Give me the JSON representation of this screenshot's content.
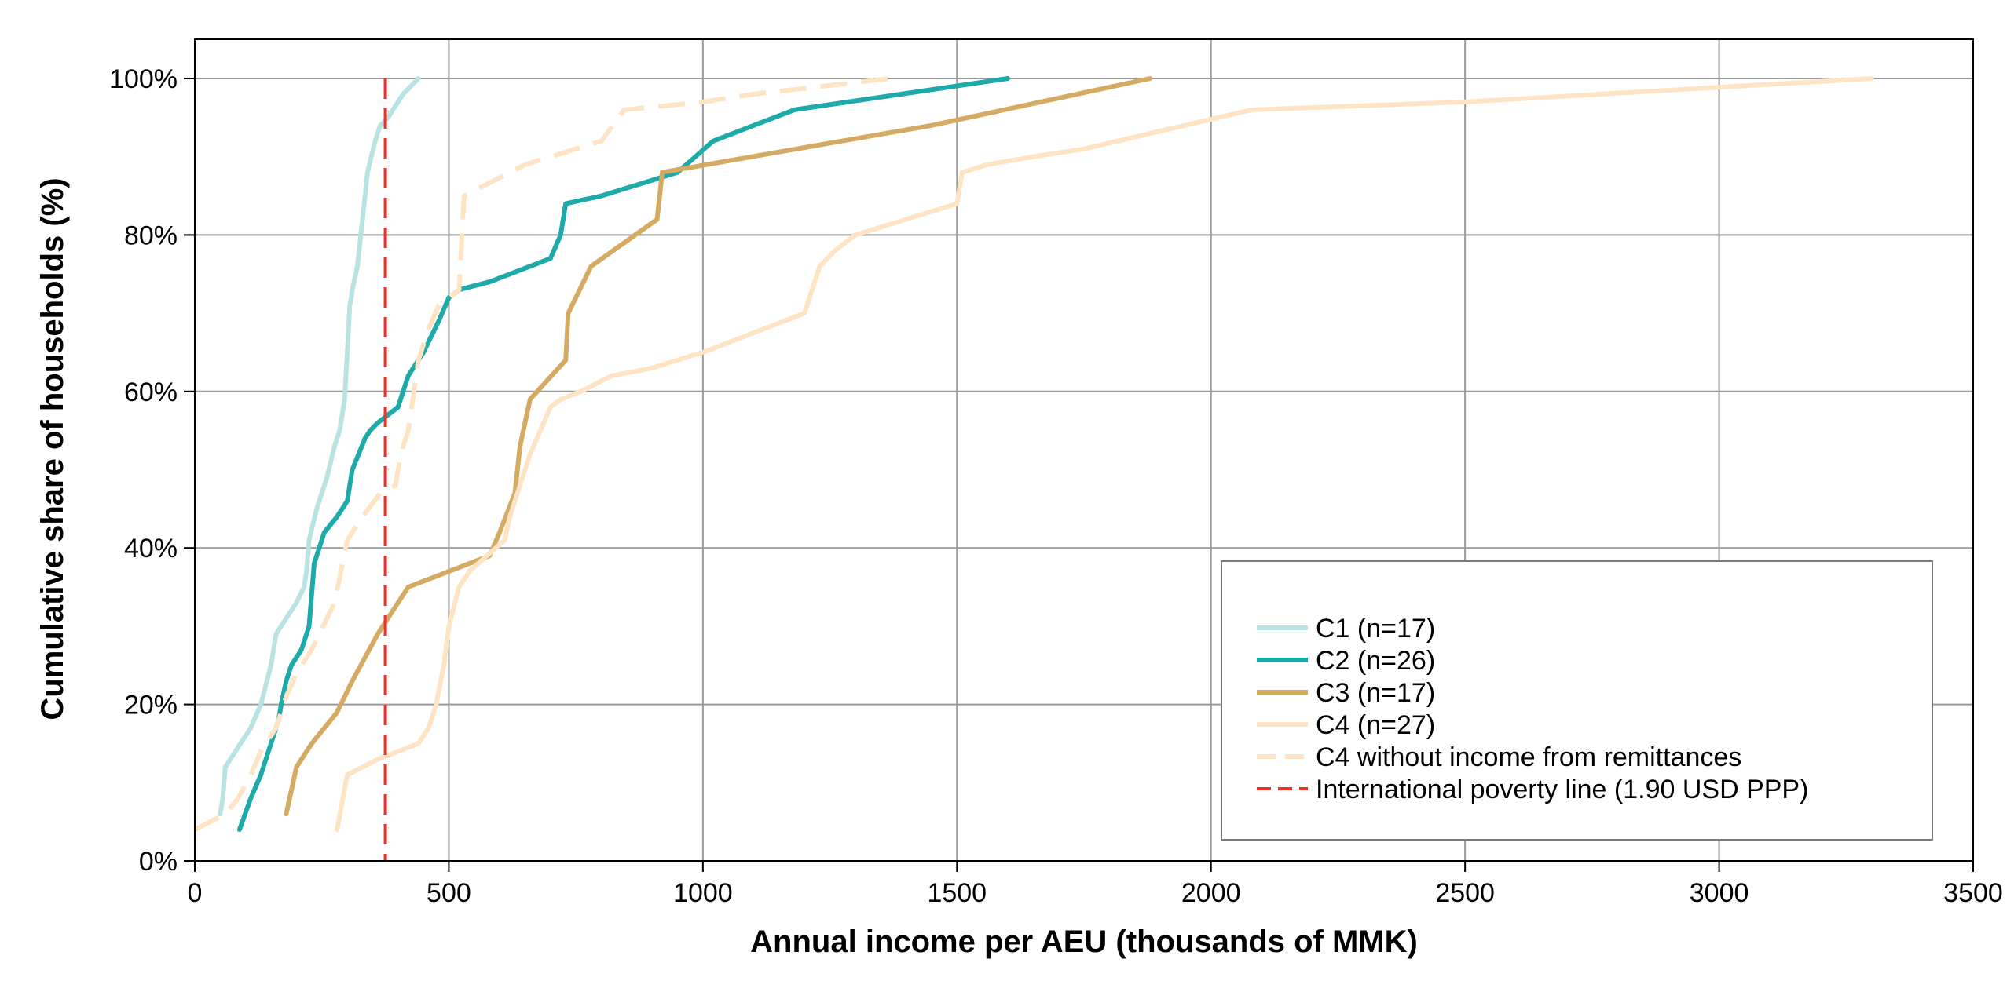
{
  "chart_data": {
    "type": "line",
    "title": "",
    "xlabel": "Annual income per AEU (thousands of MMK)",
    "ylabel": "Cumulative share of households (%)",
    "xlim": [
      0,
      3500
    ],
    "ylim": [
      0,
      100
    ],
    "xticks": [
      0,
      500,
      1000,
      1500,
      2000,
      2500,
      3000,
      3500
    ],
    "yticks": [
      0,
      20,
      40,
      60,
      80,
      100
    ],
    "xtick_labels": [
      "0",
      "500",
      "1000",
      "1500",
      "2000",
      "2500",
      "3000",
      "3500"
    ],
    "ytick_labels": [
      "0%",
      "20%",
      "40%",
      "60%",
      "80%",
      "100%"
    ],
    "grid": true,
    "legend_position": "bottom-right",
    "poverty_line": {
      "label": "International poverty line (1.90 USD PPP)",
      "x": 375,
      "color": "#e8322b",
      "style": "dashed"
    },
    "series": [
      {
        "name": "C1 (n=17)",
        "color": "#b9e2e3",
        "style": "solid",
        "x": [
          50,
          55,
          60,
          90,
          110,
          130,
          150,
          160,
          180,
          200,
          215,
          220,
          225,
          240,
          260,
          275,
          285,
          295,
          300,
          305,
          308,
          310,
          320,
          325,
          330,
          335,
          340,
          355,
          365,
          380,
          410,
          440
        ],
        "y": [
          6,
          8,
          12,
          15,
          17,
          20,
          25,
          29,
          31,
          33,
          35,
          37,
          41,
          45,
          49,
          53,
          55,
          59,
          65,
          71,
          72,
          73,
          76,
          79,
          82,
          85,
          88,
          92,
          94,
          95,
          98,
          100
        ]
      },
      {
        "name": "C2 (n=26)",
        "color": "#1eaaa8",
        "style": "solid",
        "x": [
          88,
          110,
          130,
          150,
          165,
          170,
          180,
          190,
          210,
          225,
          235,
          255,
          280,
          300,
          305,
          310,
          335,
          345,
          360,
          400,
          410,
          420,
          450,
          480,
          500,
          520,
          580,
          700,
          720,
          725,
          730,
          800,
          900,
          950,
          1020,
          1100,
          1180,
          1600
        ],
        "y": [
          4,
          8,
          11,
          15,
          18,
          20,
          23,
          25,
          27,
          30,
          38,
          42,
          44,
          46,
          48,
          50,
          54,
          55,
          56,
          58,
          60,
          62,
          65,
          69,
          72,
          73,
          74,
          77,
          80,
          82,
          84,
          85,
          87,
          88,
          92,
          94,
          96,
          100
        ]
      },
      {
        "name": "C3 (n=17)",
        "color": "#d5aa62",
        "style": "solid",
        "x": [
          180,
          200,
          230,
          280,
          310,
          360,
          380,
          420,
          580,
          600,
          630,
          640,
          660,
          730,
          735,
          780,
          910,
          920,
          1450,
          1880
        ],
        "y": [
          6,
          12,
          15,
          19,
          23,
          29,
          31,
          35,
          39,
          42,
          47,
          53,
          59,
          64,
          70,
          76,
          82,
          88,
          94,
          100
        ]
      },
      {
        "name": "C4 (n=27)",
        "color": "#fee4c4",
        "style": "solid",
        "x": [
          280,
          300,
          330,
          360,
          440,
          460,
          475,
          490,
          500,
          520,
          540,
          610,
          620,
          640,
          660,
          680,
          700,
          720,
          760,
          820,
          900,
          1000,
          1080,
          1200,
          1230,
          1260,
          1300,
          1400,
          1500,
          1510,
          1560,
          1650,
          1750,
          2080,
          2500,
          3300
        ],
        "y": [
          4,
          11,
          12,
          13,
          15,
          17,
          20,
          25,
          30,
          35,
          37,
          41,
          44,
          48,
          52,
          55,
          58,
          59,
          60,
          62,
          63,
          65,
          67,
          70,
          76,
          78,
          80,
          82,
          84,
          88,
          89,
          90,
          91,
          96,
          97,
          100
        ]
      },
      {
        "name": "C4 without income from remittances",
        "color": "#fee4c4",
        "style": "dashed",
        "x": [
          0,
          60,
          85,
          110,
          130,
          160,
          180,
          200,
          230,
          260,
          275,
          300,
          330,
          365,
          395,
          400,
          410,
          420,
          440,
          460,
          480,
          520,
          530,
          650,
          800,
          845,
          1000,
          1100,
          1370
        ],
        "y": [
          4,
          6,
          8,
          11,
          14,
          17,
          21,
          24,
          27,
          31,
          33,
          41,
          44,
          47,
          48,
          50,
          53,
          55,
          64,
          68,
          71,
          73,
          85,
          89,
          92,
          96,
          97,
          98,
          100
        ]
      }
    ]
  }
}
